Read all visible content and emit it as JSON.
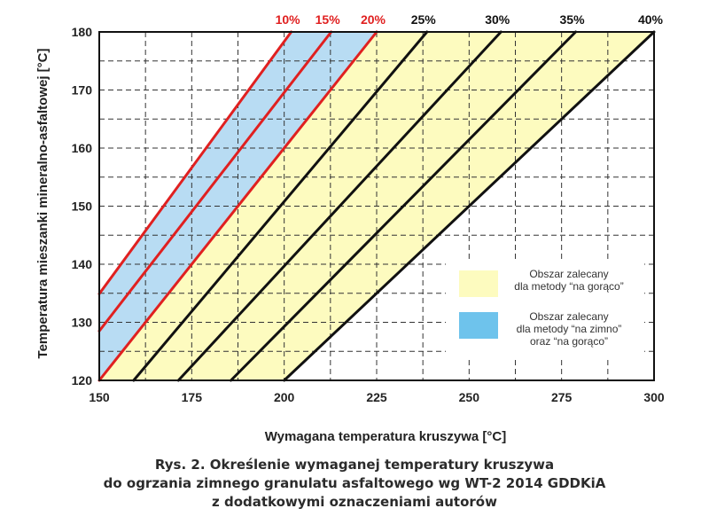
{
  "chart_data": {
    "type": "line",
    "title": "",
    "xlabel": "Wymagana temperatura kruszywa [°C]",
    "ylabel": "Temperatura mieszanki mineralno-asfaltowej [°C]",
    "xlim": [
      150,
      300
    ],
    "ylim": [
      120,
      180
    ],
    "x_ticks": [
      "150",
      "175",
      "200",
      "225",
      "250",
      "275",
      "300"
    ],
    "y_ticks": [
      "120",
      "130",
      "140",
      "150",
      "160",
      "170",
      "180"
    ],
    "grid": true,
    "legend_placement": "bottom-right",
    "colors": {
      "hot_only": "#fdfbbf",
      "cold_and_hot": "#b8dcf3",
      "red_line": "#e02020",
      "black_line": "#111111"
    },
    "series": [
      {
        "name": "10%",
        "color": "#e02020",
        "points": [
          [
            150,
            134.9
          ],
          [
            201.9,
            180
          ]
        ]
      },
      {
        "name": "15%",
        "color": "#e02020",
        "points": [
          [
            150,
            128.5
          ],
          [
            212.7,
            180
          ]
        ]
      },
      {
        "name": "20%",
        "color": "#e02020",
        "points": [
          [
            150,
            120
          ],
          [
            225,
            180
          ]
        ]
      },
      {
        "name": "25%",
        "color": "#111111",
        "points": [
          [
            159.3,
            120
          ],
          [
            238.6,
            180
          ]
        ]
      },
      {
        "name": "30%",
        "color": "#111111",
        "points": [
          [
            171.4,
            120
          ],
          [
            258.6,
            180
          ]
        ]
      },
      {
        "name": "35%",
        "color": "#111111",
        "points": [
          [
            185.6,
            120
          ],
          [
            278.8,
            180
          ]
        ]
      },
      {
        "name": "40%",
        "color": "#111111",
        "points": [
          [
            200,
            120
          ],
          [
            300,
            180
          ]
        ]
      }
    ],
    "regions": [
      {
        "legend": "legend.items.1",
        "fill": "#b8dcf3",
        "between": [
          "10%",
          "20%"
        ]
      },
      {
        "legend": "legend.items.0",
        "fill": "#fdfbbf",
        "between": [
          "20%",
          "40%"
        ]
      }
    ]
  },
  "legend": {
    "items": [
      {
        "color": "#fdfbbf",
        "lines": [
          "Obszar zalecany",
          "dla metody “na gorąco”"
        ]
      },
      {
        "color": "#6ec3ec",
        "lines": [
          "Obszar zalecany",
          "dla metody “na zimno”",
          "oraz “na gorąco”"
        ]
      }
    ]
  },
  "caption": {
    "line1": "Rys. 2. Określenie wymaganej temperatury kruszywa",
    "line2": "do ogrzania zimnego granulatu asfaltowego wg WT-2 2014 GDDKiA",
    "line3": "z dodatkowymi oznaczeniami autorów"
  }
}
